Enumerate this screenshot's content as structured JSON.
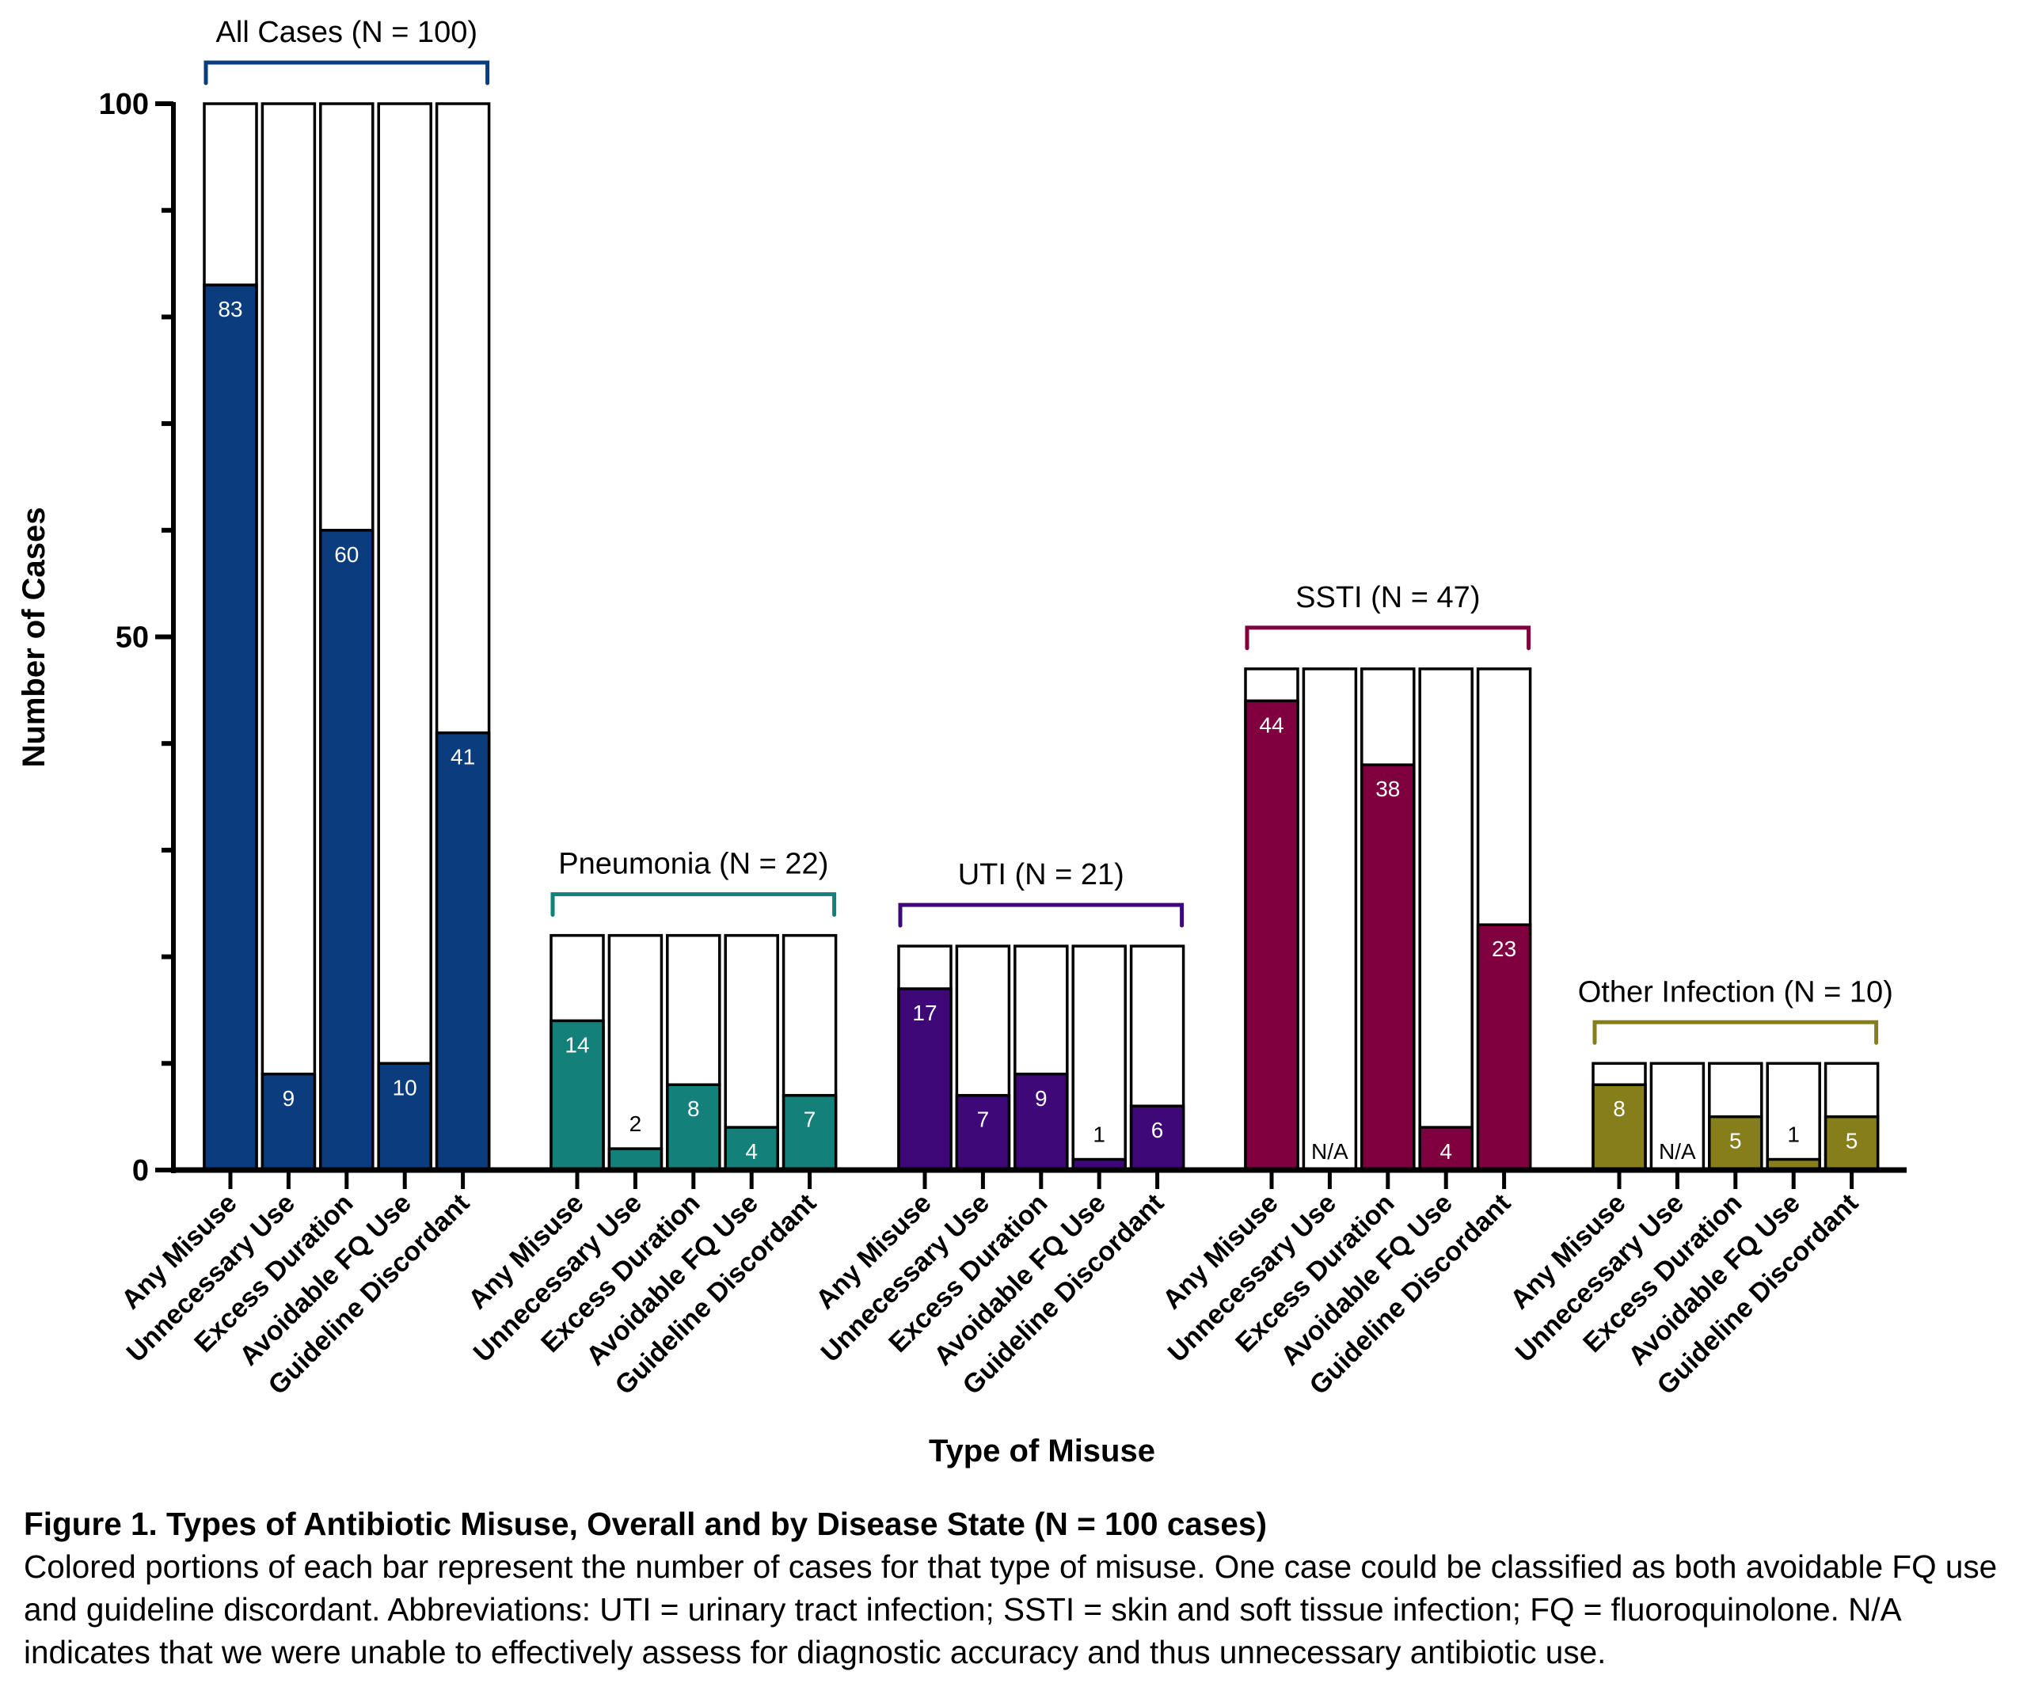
{
  "chart_data": {
    "type": "bar",
    "subtype": "grouped overlay (colored count within white group-total bar)",
    "xlabel": "Type of Misuse",
    "ylabel": "Number of Cases",
    "ylim": [
      0,
      100
    ],
    "yticks_major": [
      0,
      50,
      100
    ],
    "yticks_minor_step": 10,
    "grid": false,
    "legend": "none",
    "categories": [
      "Any Misuse",
      "Unnecessary Use",
      "Excess Duration",
      "Avoidable FQ Use",
      "Guideline Discordant"
    ],
    "groups": [
      {
        "name": "All Cases",
        "label": "All Cases (N = 100)",
        "total": 100,
        "color": "#0b3d7e",
        "values": [
          83,
          9,
          60,
          10,
          41
        ],
        "value_labels": [
          "83",
          "9",
          "60",
          "10",
          "41"
        ]
      },
      {
        "name": "Pneumonia",
        "label": "Pneumonia (N = 22)",
        "total": 22,
        "color": "#13807a",
        "values": [
          14,
          2,
          8,
          4,
          7
        ],
        "value_labels": [
          "14",
          "2",
          "8",
          "4",
          "7"
        ]
      },
      {
        "name": "UTI",
        "label": "UTI (N = 21)",
        "total": 21,
        "color": "#3e0878",
        "values": [
          17,
          7,
          9,
          1,
          6
        ],
        "value_labels": [
          "17",
          "7",
          "9",
          "1",
          "6"
        ]
      },
      {
        "name": "SSTI",
        "label": "SSTI (N = 47)",
        "total": 47,
        "color": "#7e003e",
        "values": [
          44,
          null,
          38,
          4,
          23
        ],
        "value_labels": [
          "44",
          "N/A",
          "38",
          "4",
          "23"
        ]
      },
      {
        "name": "Other Infection",
        "label": "Other Infection (N = 10)",
        "total": 10,
        "color": "#857e1a",
        "values": [
          8,
          null,
          5,
          1,
          5
        ],
        "value_labels": [
          "8",
          "N/A",
          "5",
          "1",
          "5"
        ]
      }
    ]
  },
  "caption": {
    "title": "Figure 1. Types of Antibiotic Misuse, Overall and by Disease State (N = 100 cases)",
    "body": "Colored portions of each bar represent the number of cases for that type of misuse. One case could be classified as both avoidable FQ use and guideline discordant. Abbreviations: UTI = urinary tract infection; SSTI = skin and soft tissue infection; FQ = fluoroquinolone. N/A indicates that we were unable to effectively assess for diagnostic accuracy and thus unnecessary antibiotic use."
  }
}
